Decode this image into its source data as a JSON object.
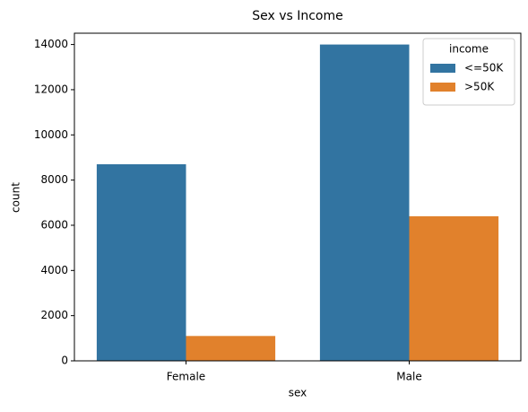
{
  "chart_data": {
    "type": "grouped-bar",
    "title": "Sex vs Income",
    "x_label": "sex",
    "y_label": "count",
    "categories": [
      "Female",
      "Male"
    ],
    "legend_title": "income",
    "legend_position": "upper-right",
    "series": [
      {
        "name": "<=50K",
        "color": "#3274a1",
        "values": [
          8700,
          14000
        ]
      },
      {
        "name": ">50K",
        "color": "#e1812c",
        "values": [
          1100,
          6400
        ]
      }
    ],
    "ylim": [
      0,
      14500
    ],
    "yticks": [
      0,
      2000,
      4000,
      6000,
      8000,
      10000,
      12000,
      14000
    ],
    "grid": false
  }
}
